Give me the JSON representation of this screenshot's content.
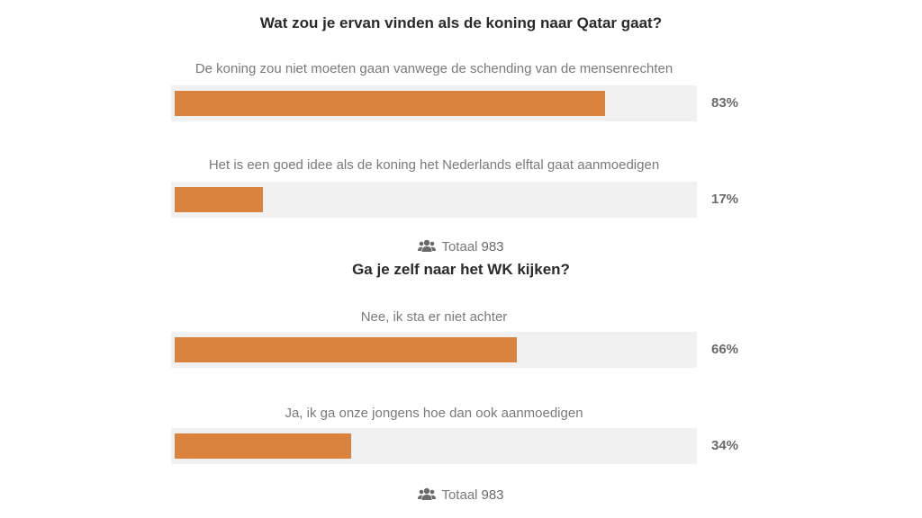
{
  "colors": {
    "bar": "#d9833e",
    "track": "#f1f1f1",
    "question_text": "#2a2a2a",
    "label_text": "#7a7a7a"
  },
  "chart_data": [
    {
      "type": "bar",
      "orientation": "horizontal",
      "title": "Wat zou je ervan vinden als de koning naar Qatar gaat?",
      "categories": [
        "De koning zou niet moeten gaan vanwege de schending van de mensenrechten",
        "Het is een goed idee als de koning het Nederlands elftal gaat aanmoedigen"
      ],
      "values": [
        83,
        17
      ],
      "value_labels": [
        "83%",
        "17%"
      ],
      "xlim": [
        0,
        100
      ],
      "total_label": "Totaal",
      "total_value": "983",
      "total_icon": "users-icon"
    },
    {
      "type": "bar",
      "orientation": "horizontal",
      "title": "Ga je zelf naar het WK kijken?",
      "categories": [
        "Nee, ik sta er niet achter",
        "Ja, ik ga onze jongens hoe dan ook aanmoedigen"
      ],
      "values": [
        66,
        34
      ],
      "value_labels": [
        "66%",
        "34%"
      ],
      "xlim": [
        0,
        100
      ],
      "total_label": "Totaal",
      "total_value": "983",
      "total_icon": "users-icon"
    }
  ]
}
